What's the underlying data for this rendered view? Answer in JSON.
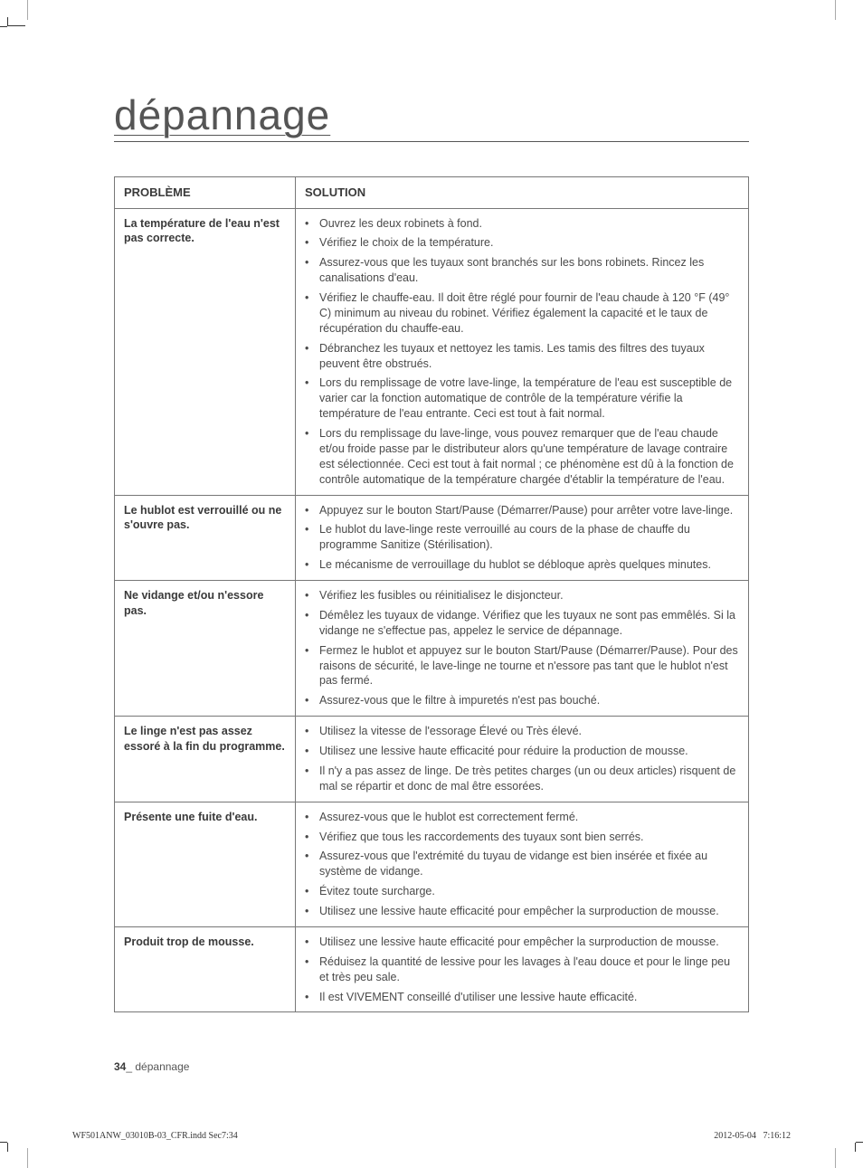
{
  "title": "dépannage",
  "headers": {
    "problem": "PROBLÈME",
    "solution": "SOLUTION"
  },
  "rows": [
    {
      "problem": "La température de l'eau n'est pas correcte.",
      "solutions": [
        "Ouvrez les deux robinets à fond.",
        "Vérifiez le choix de la température.",
        "Assurez-vous que les tuyaux sont branchés sur les bons robinets. Rincez les canalisations d'eau.",
        "Vérifiez le chauffe-eau. Il doit être réglé pour fournir de l'eau chaude à 120 °F (49° C) minimum au niveau du robinet. Vérifiez également la capacité et le taux de récupération du chauffe-eau.",
        "Débranchez les tuyaux et nettoyez les tamis. Les tamis des filtres des tuyaux peuvent être obstrués.",
        "Lors du remplissage de votre lave-linge, la température de l'eau est susceptible de varier car la fonction automatique de contrôle de la température vérifie la température de l'eau entrante. Ceci est tout à fait normal.",
        "Lors du remplissage du lave-linge, vous pouvez remarquer que de l'eau chaude et/ou froide passe par le distributeur alors qu'une température de lavage contraire est sélectionnée. Ceci est tout à fait normal ; ce phénomène est dû à la fonction de contrôle automatique de la température chargée d'établir la température de l'eau."
      ]
    },
    {
      "problem": "Le hublot est verrouillé ou ne s'ouvre pas.",
      "solutions": [
        "Appuyez sur le bouton Start/Pause (Démarrer/Pause) pour arrêter votre lave-linge.",
        "Le hublot du lave-linge reste verrouillé au cours de la phase de chauffe du programme Sanitize (Stérilisation).",
        "Le mécanisme de verrouillage du hublot se débloque après quelques minutes."
      ]
    },
    {
      "problem": "Ne vidange et/ou n'essore pas.",
      "solutions": [
        "Vérifiez les fusibles ou réinitialisez le disjoncteur.",
        "Démêlez les tuyaux de vidange. Vérifiez que les tuyaux ne sont pas emmêlés. Si la vidange ne s'effectue pas, appelez le service de dépannage.",
        "Fermez le hublot et appuyez sur le bouton Start/Pause (Démarrer/Pause). Pour des raisons de sécurité, le lave-linge ne tourne et n'essore pas tant que le hublot n'est pas fermé.",
        "Assurez-vous que le filtre à impuretés n'est pas bouché."
      ]
    },
    {
      "problem": "Le linge n'est pas assez essoré à la fin du programme.",
      "solutions": [
        "Utilisez la vitesse de l'essorage Élevé ou Très élevé.",
        "Utilisez une lessive haute efficacité pour réduire la production de mousse.",
        "Il n'y a pas assez de linge. De très petites charges (un ou deux articles) risquent de mal se répartir et donc de mal être essorées."
      ]
    },
    {
      "problem": "Présente une fuite d'eau.",
      "solutions": [
        "Assurez-vous que le hublot est correctement fermé.",
        "Vérifiez que tous les raccordements des tuyaux sont bien serrés.",
        "Assurez-vous que l'extrémité du tuyau de vidange est bien insérée et fixée au système de vidange.",
        "Évitez toute surcharge.",
        "Utilisez une lessive haute efficacité pour empêcher la surproduction de mousse."
      ]
    },
    {
      "problem": "Produit trop de mousse.",
      "solutions": [
        "Utilisez une lessive haute efficacité pour empêcher la surproduction de mousse.",
        "Réduisez la quantité de lessive pour les lavages à l'eau douce et pour le linge peu et très peu sale.",
        "Il est VIVEMENT conseillé d'utiliser une lessive haute efficacité."
      ]
    }
  ],
  "footer": {
    "page_num": "34",
    "sep": "_",
    "section": " dépannage"
  },
  "print": {
    "file": "WF501ANW_03010B-03_CFR.indd   Sec7:34",
    "date": "2012-05-04",
    "time": "7:16:12"
  }
}
